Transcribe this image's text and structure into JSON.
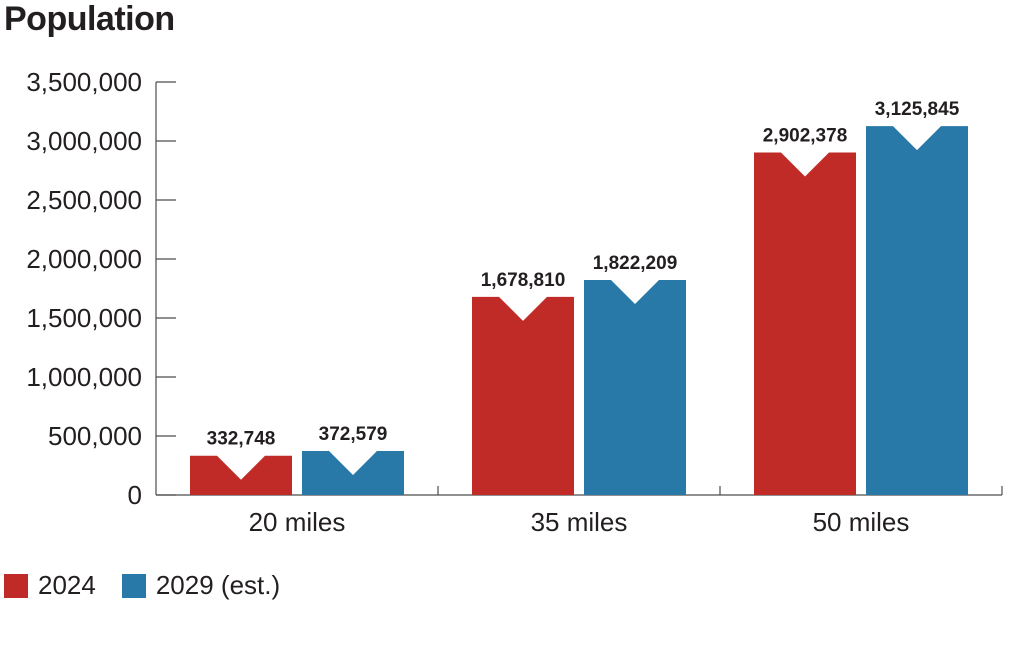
{
  "chart_data": {
    "type": "bar",
    "title": "Population",
    "xlabel": "",
    "ylabel": "",
    "categories": [
      "20 miles",
      "35 miles",
      "50 miles"
    ],
    "series": [
      {
        "name": "2024",
        "color": "#c12b27",
        "values": [
          332748,
          1678810,
          2902378
        ],
        "labels": [
          "332,748",
          "1,678,810",
          "2,902,378"
        ]
      },
      {
        "name": "2029 (est.)",
        "color": "#2878a8",
        "values": [
          372579,
          1822209,
          3125845
        ],
        "labels": [
          "372,579",
          "1,822,209",
          "3,125,845"
        ]
      }
    ],
    "ylim": [
      0,
      3500000
    ],
    "yticks": [
      0,
      500000,
      1000000,
      1500000,
      2000000,
      2500000,
      3000000,
      3500000
    ],
    "ytick_labels": [
      "0",
      "500,000",
      "1,000,000",
      "1,500,000",
      "2,000,000",
      "2,500,000",
      "3,000,000",
      "3,500,000"
    ],
    "grid": false,
    "legend_position": "bottom-left"
  }
}
